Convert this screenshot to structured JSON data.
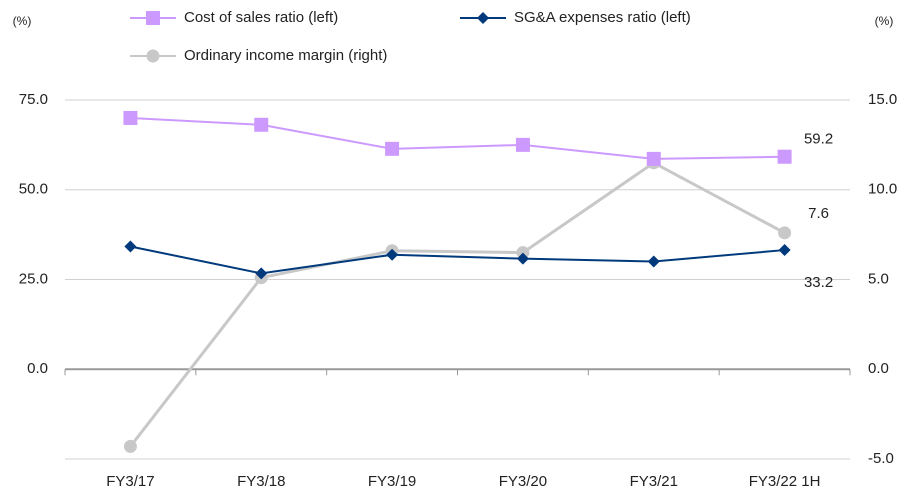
{
  "chart_data": {
    "type": "line",
    "y_unit": "(%)",
    "y2_unit": "(%)",
    "categories": [
      "FY3/17",
      "FY3/18",
      "FY3/19",
      "FY3/20",
      "FY3/21",
      "FY3/22 1H"
    ],
    "series": [
      {
        "name": "Cost of sales ratio (left)",
        "color": "#cc99ff",
        "marker": "square",
        "label_last": true,
        "values": [
          70.0,
          68.1,
          61.4,
          62.5,
          58.6,
          59.2
        ]
      },
      {
        "name": "SG&A expenses ratio (left)",
        "color": "#003a7d",
        "marker": "diamond",
        "label_last": true,
        "values": [
          34.2,
          26.7,
          31.9,
          30.8,
          30.0,
          33.2
        ]
      },
      {
        "name": "Ordinary income margin (right)",
        "color": "#c8c8c8",
        "marker": "circle",
        "axis": "y2",
        "label_last": true,
        "values": [
          -4.3,
          5.1,
          6.6,
          6.5,
          11.5,
          7.6
        ]
      }
    ],
    "ylim": [
      -25,
      75
    ],
    "yticks": [
      {
        "value": 0,
        "label": "0.0"
      },
      {
        "value": 25,
        "label": "25.0"
      },
      {
        "value": 50,
        "label": "50.0"
      },
      {
        "value": 75,
        "label": "75.0"
      }
    ],
    "y2lim": [
      -5,
      15
    ],
    "y2ticks": [
      {
        "value": -5,
        "label": "-5.0"
      },
      {
        "value": 0,
        "label": "0.0"
      },
      {
        "value": 5,
        "label": "5.0"
      },
      {
        "value": 10,
        "label": "10.0"
      },
      {
        "value": 15,
        "label": "15.0"
      }
    ],
    "grid": true
  }
}
